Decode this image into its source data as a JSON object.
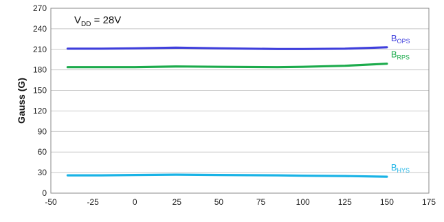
{
  "chart_data": {
    "type": "line",
    "title": "",
    "xlabel": "",
    "ylabel": "Gauss (G)",
    "xlim": [
      -50,
      175
    ],
    "ylim": [
      0,
      270
    ],
    "xticks": [
      -50,
      -25,
      0,
      25,
      50,
      75,
      100,
      125,
      150,
      175
    ],
    "yticks": [
      0,
      30,
      60,
      90,
      120,
      150,
      180,
      210,
      240,
      270
    ],
    "grid": true,
    "annotation": {
      "main": "V",
      "sub": "DD",
      "rest": " = 28V",
      "position": "top-left"
    },
    "series": [
      {
        "name": "BOPS",
        "label_main": "B",
        "label_sub": "OPS",
        "color": "#3f3fdc",
        "x": [
          -40,
          -20,
          0,
          25,
          50,
          85,
          100,
          125,
          150
        ],
        "y": [
          211,
          211,
          211.5,
          212.5,
          211.5,
          210.5,
          210.5,
          211,
          213
        ]
      },
      {
        "name": "BRPS",
        "label_main": "B",
        "label_sub": "RPS",
        "color": "#1cab4c",
        "x": [
          -40,
          -20,
          0,
          25,
          50,
          85,
          100,
          125,
          150
        ],
        "y": [
          184,
          184,
          184,
          185,
          184.5,
          184,
          184.5,
          186,
          189
        ]
      },
      {
        "name": "BHYS",
        "label_main": "B",
        "label_sub": "HYS",
        "color": "#19b3e6",
        "x": [
          -40,
          -20,
          0,
          25,
          50,
          85,
          100,
          125,
          150
        ],
        "y": [
          26,
          26,
          26.5,
          27,
          26.5,
          26,
          25.5,
          25,
          24
        ]
      }
    ]
  }
}
